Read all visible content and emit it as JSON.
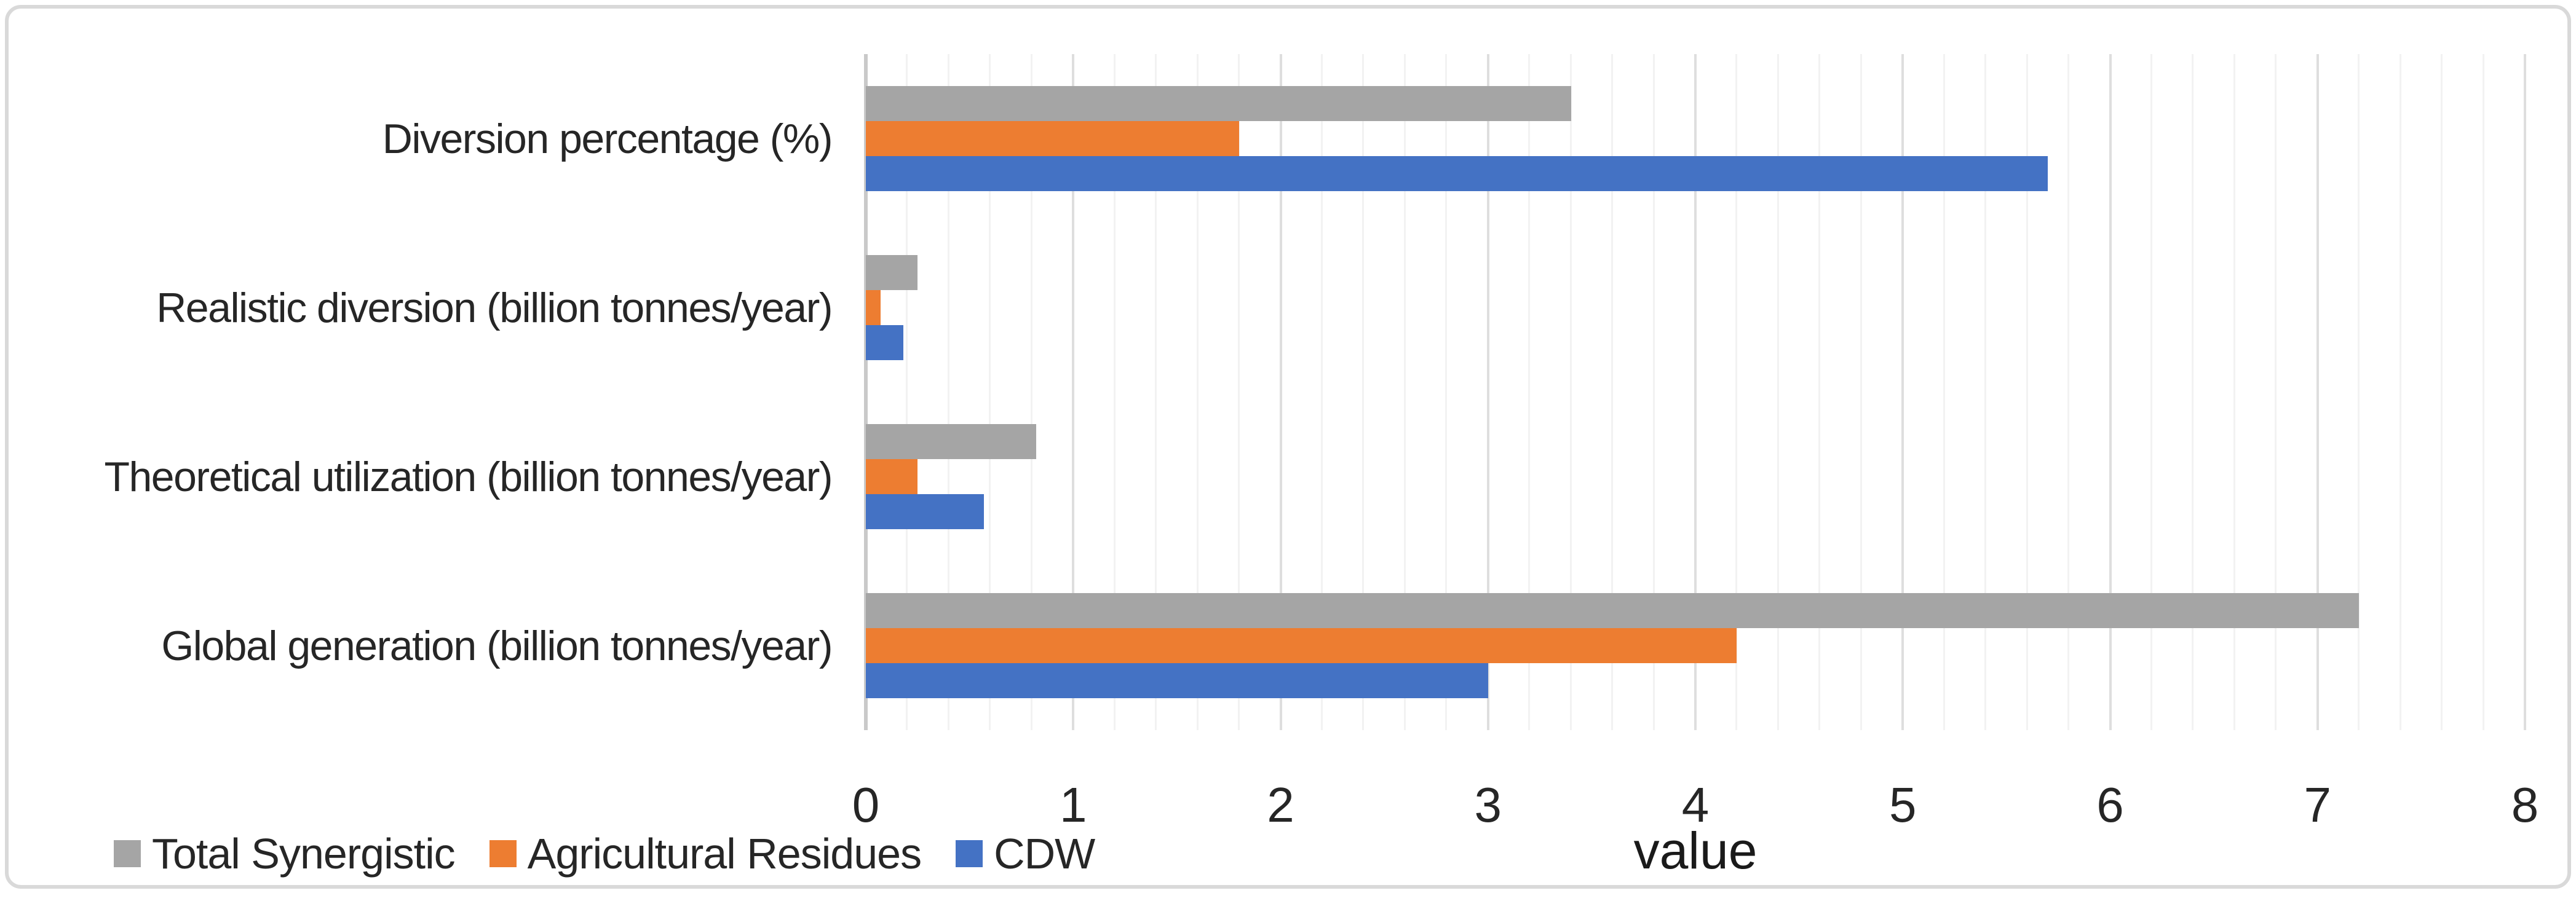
{
  "figure": {
    "background_color": "#ffffff",
    "border_color": "#d9d9d9",
    "text_color": "#262626",
    "gridline_minor_color": "#f2f2f2",
    "gridline_major_color": "#dedede",
    "axis_line_color": "#c9c9c9"
  },
  "chart_data": {
    "type": "bar",
    "orientation": "horizontal",
    "title": "",
    "xlabel": "value",
    "ylabel": "",
    "xlim": [
      0,
      8
    ],
    "x_major_ticks": [
      0,
      1,
      2,
      3,
      4,
      5,
      6,
      7,
      8
    ],
    "x_minor_step": 0.2,
    "grid": true,
    "legend_position": "bottom-left",
    "categories": [
      "Diversion percentage (%)",
      "Realistic diversion (billion tonnes/year)",
      "Theoretical utilization (billion tonnes/year)",
      "Global generation (billion tonnes/year)"
    ],
    "series": [
      {
        "name": "Total Synergistic",
        "color": "#A5A5A5",
        "values": [
          3.4,
          0.25,
          0.82,
          7.2
        ]
      },
      {
        "name": "Agricultural Residues",
        "color": "#ED7D31",
        "values": [
          1.8,
          0.07,
          0.25,
          4.2
        ]
      },
      {
        "name": "CDW",
        "color": "#4472C4",
        "values": [
          5.7,
          0.18,
          0.57,
          3.0
        ]
      }
    ]
  }
}
